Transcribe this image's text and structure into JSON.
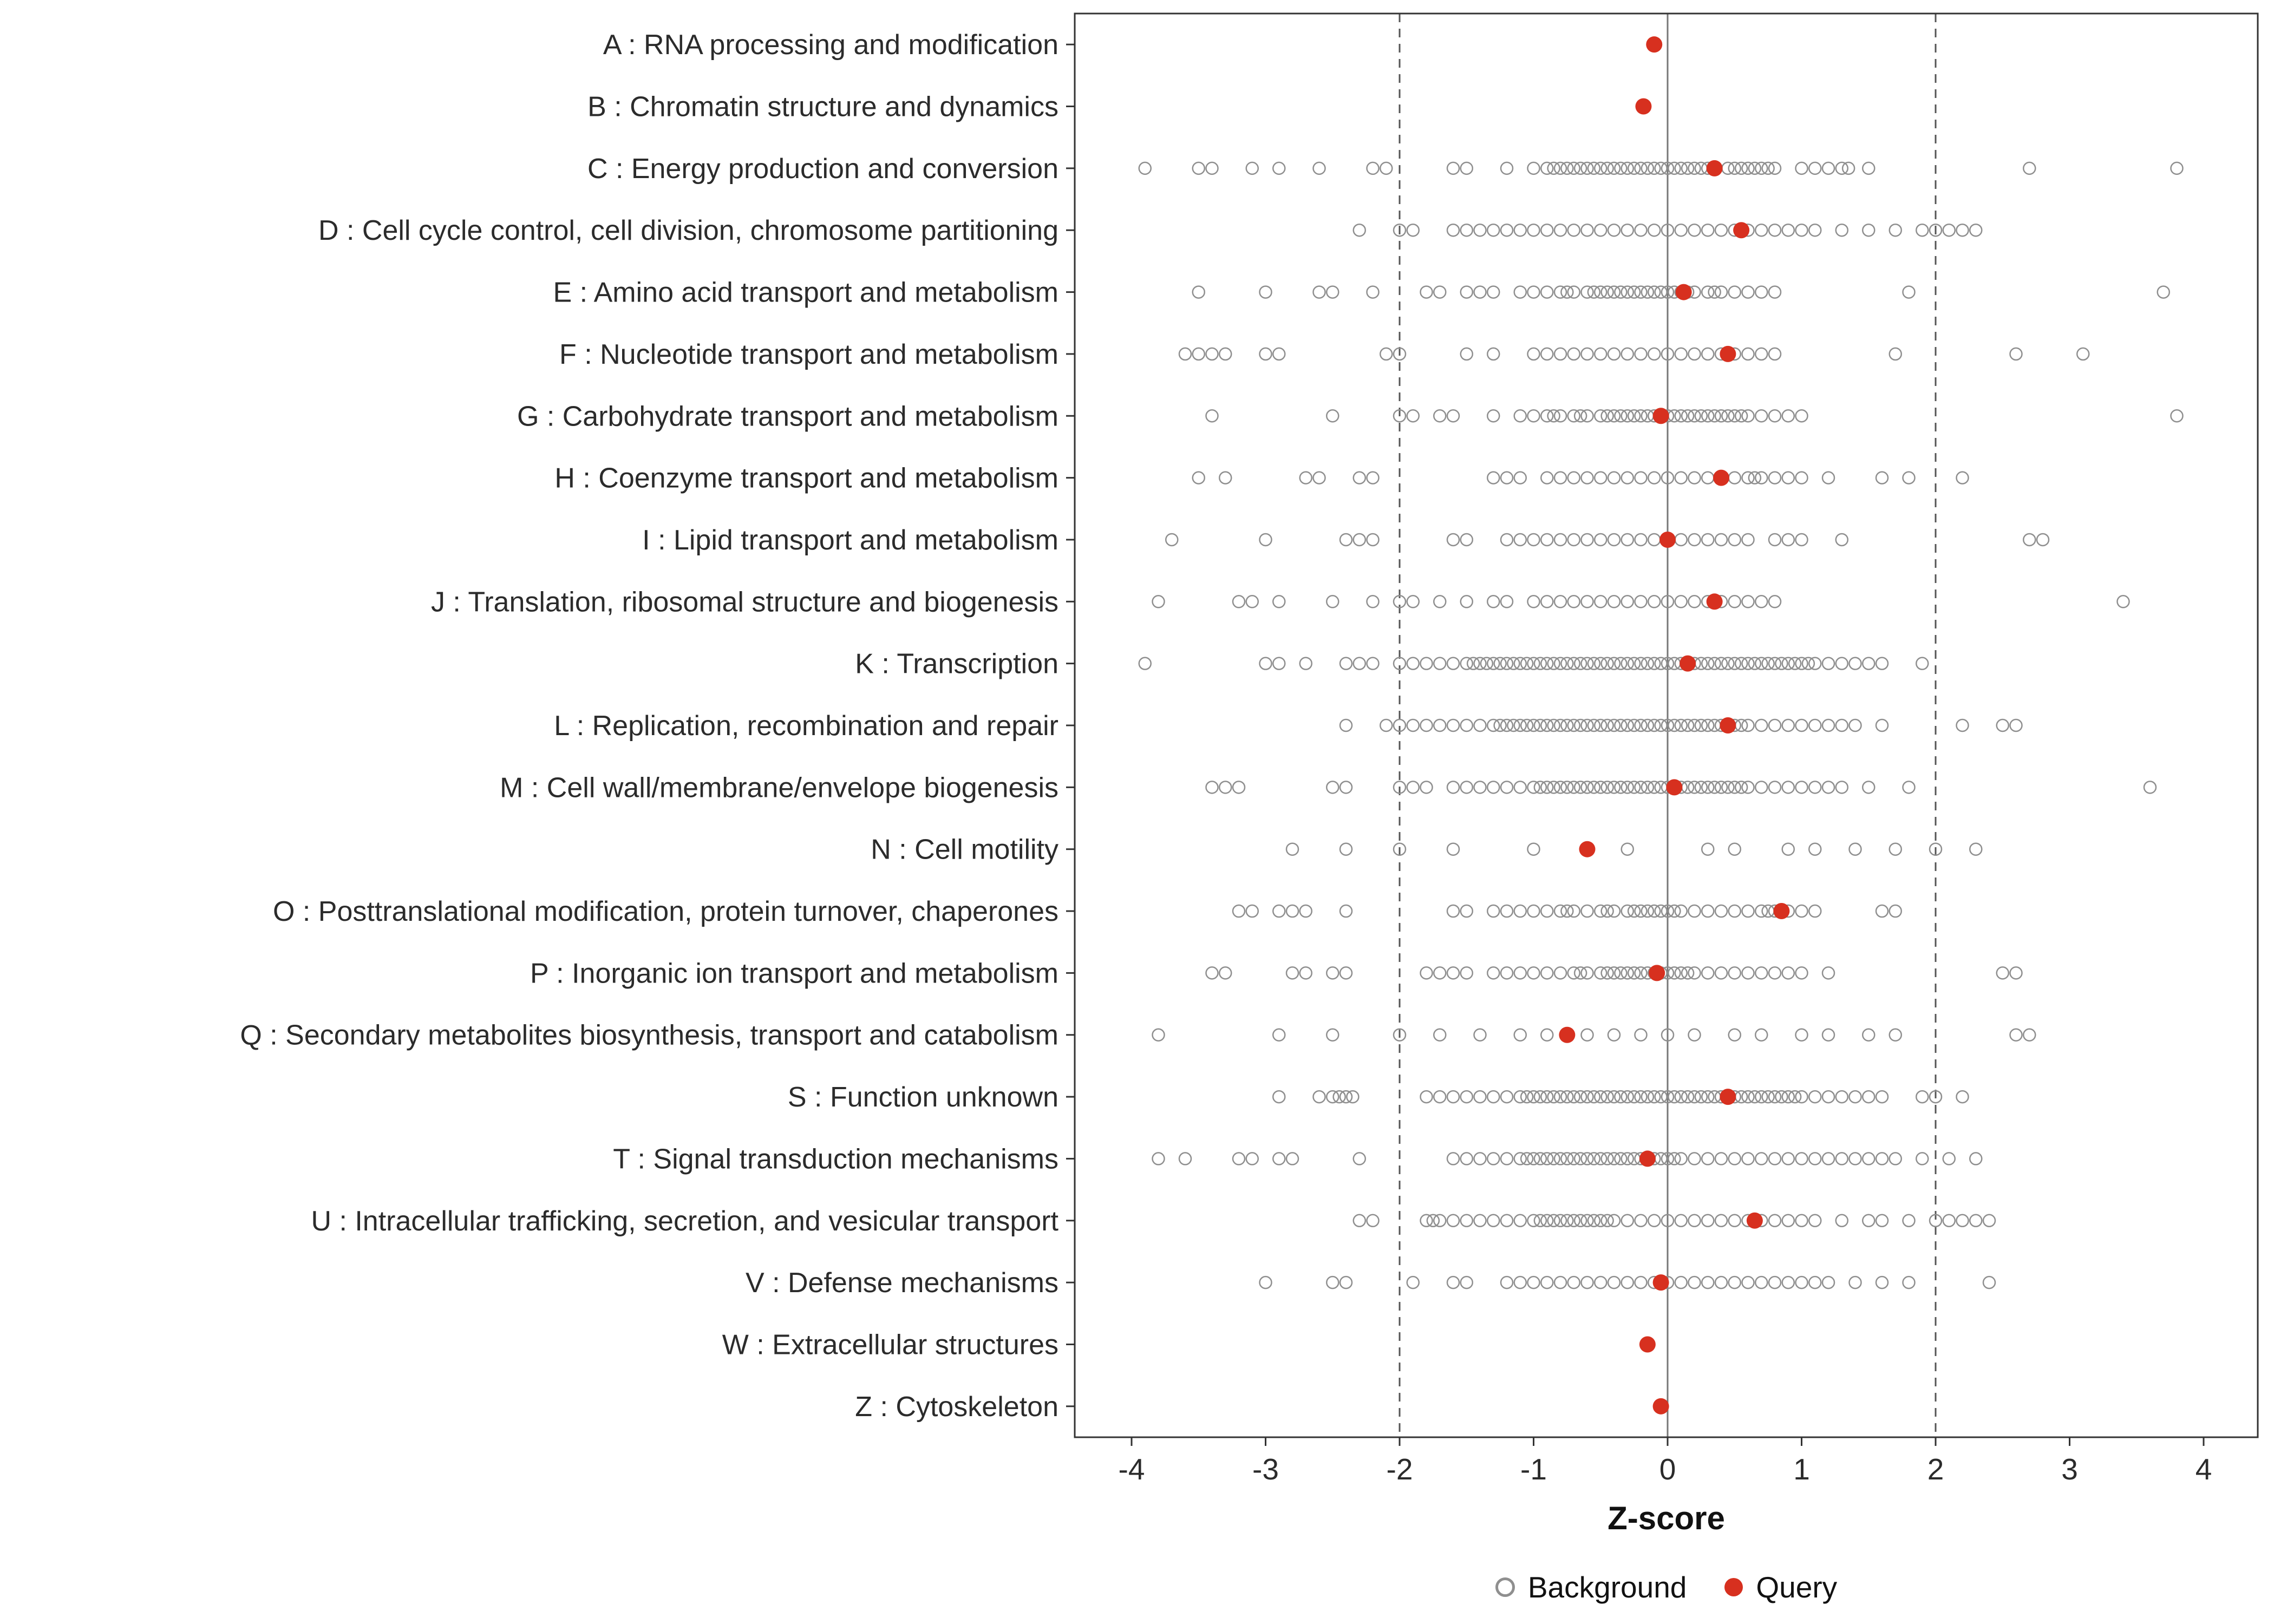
{
  "chart_data": {
    "type": "scatter",
    "title": "",
    "xlabel": "Z-score",
    "xlim": [
      -4.45,
      4.45
    ],
    "xticks": [
      -4,
      -3,
      -2,
      -1,
      0,
      1,
      2,
      3,
      4
    ],
    "reference_lines": {
      "solid": [
        0
      ],
      "dashed": [
        -2,
        2
      ]
    },
    "grid": false,
    "legend_position": "bottom",
    "legend": [
      {
        "label": "Background",
        "type": "open"
      },
      {
        "label": "Query",
        "type": "filled"
      }
    ],
    "colors": {
      "background_stroke": "#8f8f8f",
      "query_fill": "#d7301f",
      "panel_border": "#333333",
      "refline_solid": "#777777",
      "refline_dashed": "#555555",
      "text": "#2b2b2b"
    },
    "categories": [
      {
        "code": "A",
        "label": "A : RNA processing and modification",
        "query": -0.1,
        "background": []
      },
      {
        "code": "B",
        "label": "B : Chromatin structure and dynamics",
        "query": -0.18,
        "background": []
      },
      {
        "code": "C",
        "label": "C : Energy production and conversion",
        "query": 0.35,
        "background": [
          -3.9,
          -3.5,
          -3.4,
          -3.1,
          -2.9,
          -2.6,
          -2.2,
          -2.1,
          -1.6,
          -1.5,
          -1.2,
          -1.0,
          -0.9,
          -0.85,
          -0.8,
          -0.75,
          -0.7,
          -0.65,
          -0.6,
          -0.55,
          -0.5,
          -0.45,
          -0.4,
          -0.35,
          -0.3,
          -0.25,
          -0.2,
          -0.15,
          -0.1,
          -0.05,
          0.0,
          0.05,
          0.1,
          0.15,
          0.2,
          0.25,
          0.3,
          0.45,
          0.5,
          0.55,
          0.6,
          0.65,
          0.7,
          0.75,
          0.8,
          1.0,
          1.1,
          1.2,
          1.3,
          1.35,
          1.5,
          2.7,
          3.8
        ]
      },
      {
        "code": "D",
        "label": "D : Cell cycle control, cell division, chromosome partitioning",
        "query": 0.55,
        "background": [
          -2.3,
          -2.0,
          -1.9,
          -1.6,
          -1.5,
          -1.4,
          -1.3,
          -1.2,
          -1.1,
          -1.0,
          -0.9,
          -0.8,
          -0.7,
          -0.6,
          -0.5,
          -0.4,
          -0.3,
          -0.2,
          -0.1,
          0.0,
          0.1,
          0.2,
          0.3,
          0.4,
          0.5,
          0.6,
          0.7,
          0.8,
          0.9,
          1.0,
          1.1,
          1.3,
          1.5,
          1.7,
          1.9,
          2.0,
          2.1,
          2.2,
          2.3
        ]
      },
      {
        "code": "E",
        "label": "E : Amino acid transport and metabolism",
        "query": 0.12,
        "background": [
          -3.5,
          -3.0,
          -2.6,
          -2.5,
          -2.2,
          -1.8,
          -1.7,
          -1.5,
          -1.4,
          -1.3,
          -1.1,
          -1.0,
          -0.9,
          -0.8,
          -0.75,
          -0.7,
          -0.6,
          -0.55,
          -0.5,
          -0.45,
          -0.4,
          -0.35,
          -0.3,
          -0.25,
          -0.2,
          -0.15,
          -0.1,
          -0.05,
          0.0,
          0.05,
          0.1,
          0.15,
          0.2,
          0.3,
          0.35,
          0.4,
          0.5,
          0.6,
          0.7,
          0.8,
          1.8,
          3.7
        ]
      },
      {
        "code": "F",
        "label": "F : Nucleotide transport and metabolism",
        "query": 0.45,
        "background": [
          -3.6,
          -3.5,
          -3.4,
          -3.3,
          -3.0,
          -2.9,
          -2.1,
          -2.0,
          -1.5,
          -1.3,
          -1.0,
          -0.9,
          -0.8,
          -0.7,
          -0.6,
          -0.5,
          -0.4,
          -0.3,
          -0.2,
          -0.1,
          0.0,
          0.1,
          0.2,
          0.3,
          0.4,
          0.5,
          0.6,
          0.7,
          0.8,
          1.7,
          2.6,
          3.1
        ]
      },
      {
        "code": "G",
        "label": "G : Carbohydrate transport and metabolism",
        "query": -0.05,
        "background": [
          -3.4,
          -2.5,
          -2.0,
          -1.9,
          -1.7,
          -1.6,
          -1.3,
          -1.1,
          -1.0,
          -0.9,
          -0.85,
          -0.8,
          -0.7,
          -0.65,
          -0.6,
          -0.5,
          -0.45,
          -0.4,
          -0.35,
          -0.3,
          -0.25,
          -0.2,
          -0.15,
          -0.1,
          -0.05,
          0.0,
          0.05,
          0.1,
          0.15,
          0.2,
          0.25,
          0.3,
          0.35,
          0.4,
          0.45,
          0.5,
          0.55,
          0.6,
          0.7,
          0.8,
          0.9,
          1.0,
          3.8
        ]
      },
      {
        "code": "H",
        "label": "H : Coenzyme transport and metabolism",
        "query": 0.4,
        "background": [
          -3.5,
          -3.3,
          -2.7,
          -2.6,
          -2.3,
          -2.2,
          -1.3,
          -1.2,
          -1.1,
          -0.9,
          -0.8,
          -0.7,
          -0.6,
          -0.5,
          -0.4,
          -0.3,
          -0.2,
          -0.1,
          0.0,
          0.1,
          0.2,
          0.3,
          0.4,
          0.5,
          0.6,
          0.65,
          0.7,
          0.8,
          0.9,
          1.0,
          1.2,
          1.6,
          1.8,
          2.2
        ]
      },
      {
        "code": "I",
        "label": "I : Lipid transport and metabolism",
        "query": 0.0,
        "background": [
          -3.7,
          -3.0,
          -2.4,
          -2.3,
          -2.2,
          -1.6,
          -1.5,
          -1.2,
          -1.1,
          -1.0,
          -0.9,
          -0.8,
          -0.7,
          -0.6,
          -0.5,
          -0.4,
          -0.3,
          -0.2,
          -0.1,
          0.0,
          0.1,
          0.2,
          0.3,
          0.4,
          0.5,
          0.6,
          0.8,
          0.9,
          1.0,
          1.3,
          2.7,
          2.8
        ]
      },
      {
        "code": "J",
        "label": "J : Translation, ribosomal structure and biogenesis",
        "query": 0.35,
        "background": [
          -3.8,
          -3.2,
          -3.1,
          -2.9,
          -2.5,
          -2.2,
          -2.0,
          -1.9,
          -1.7,
          -1.5,
          -1.3,
          -1.2,
          -1.0,
          -0.9,
          -0.8,
          -0.7,
          -0.6,
          -0.5,
          -0.4,
          -0.3,
          -0.2,
          -0.1,
          0.0,
          0.1,
          0.2,
          0.3,
          0.4,
          0.5,
          0.6,
          0.7,
          0.8,
          3.4
        ]
      },
      {
        "code": "K",
        "label": "K : Transcription",
        "query": 0.15,
        "background": [
          -3.9,
          -3.0,
          -2.9,
          -2.7,
          -2.4,
          -2.3,
          -2.2,
          -2.0,
          -1.9,
          -1.8,
          -1.7,
          -1.6,
          -1.5,
          -1.45,
          -1.4,
          -1.35,
          -1.3,
          -1.25,
          -1.2,
          -1.15,
          -1.1,
          -1.05,
          -1.0,
          -0.95,
          -0.9,
          -0.85,
          -0.8,
          -0.75,
          -0.7,
          -0.65,
          -0.6,
          -0.55,
          -0.5,
          -0.45,
          -0.4,
          -0.35,
          -0.3,
          -0.25,
          -0.2,
          -0.15,
          -0.1,
          -0.05,
          0.0,
          0.05,
          0.1,
          0.15,
          0.2,
          0.25,
          0.3,
          0.35,
          0.4,
          0.45,
          0.5,
          0.55,
          0.6,
          0.65,
          0.7,
          0.75,
          0.8,
          0.85,
          0.9,
          0.95,
          1.0,
          1.05,
          1.1,
          1.2,
          1.3,
          1.4,
          1.5,
          1.6,
          1.9
        ]
      },
      {
        "code": "L",
        "label": "L : Replication, recombination and repair",
        "query": 0.45,
        "background": [
          -2.4,
          -2.1,
          -2.0,
          -1.9,
          -1.8,
          -1.7,
          -1.6,
          -1.5,
          -1.4,
          -1.3,
          -1.25,
          -1.2,
          -1.15,
          -1.1,
          -1.05,
          -1.0,
          -0.95,
          -0.9,
          -0.85,
          -0.8,
          -0.75,
          -0.7,
          -0.65,
          -0.6,
          -0.55,
          -0.5,
          -0.45,
          -0.4,
          -0.35,
          -0.3,
          -0.25,
          -0.2,
          -0.15,
          -0.1,
          -0.05,
          0.0,
          0.05,
          0.1,
          0.15,
          0.2,
          0.25,
          0.3,
          0.35,
          0.4,
          0.5,
          0.55,
          0.6,
          0.7,
          0.8,
          0.9,
          1.0,
          1.1,
          1.2,
          1.3,
          1.4,
          1.6,
          2.2,
          2.5,
          2.6
        ]
      },
      {
        "code": "M",
        "label": "M : Cell wall/membrane/envelope biogenesis",
        "query": 0.05,
        "background": [
          -3.4,
          -3.3,
          -3.2,
          -2.5,
          -2.4,
          -2.0,
          -1.9,
          -1.8,
          -1.6,
          -1.5,
          -1.4,
          -1.3,
          -1.2,
          -1.1,
          -1.0,
          -0.95,
          -0.9,
          -0.85,
          -0.8,
          -0.75,
          -0.7,
          -0.65,
          -0.6,
          -0.55,
          -0.5,
          -0.45,
          -0.4,
          -0.35,
          -0.3,
          -0.25,
          -0.2,
          -0.15,
          -0.1,
          -0.05,
          0.0,
          0.05,
          0.1,
          0.15,
          0.2,
          0.25,
          0.3,
          0.35,
          0.4,
          0.45,
          0.5,
          0.55,
          0.6,
          0.7,
          0.8,
          0.9,
          1.0,
          1.1,
          1.2,
          1.3,
          1.5,
          1.8,
          3.6
        ]
      },
      {
        "code": "N",
        "label": "N : Cell motility",
        "query": -0.6,
        "background": [
          -2.8,
          -2.4,
          -2.0,
          -1.6,
          -1.0,
          -0.3,
          0.3,
          0.5,
          0.9,
          1.1,
          1.4,
          1.7,
          2.0,
          2.3
        ]
      },
      {
        "code": "O",
        "label": "O : Posttranslational modification, protein turnover, chaperones",
        "query": 0.85,
        "background": [
          -3.2,
          -3.1,
          -2.9,
          -2.8,
          -2.7,
          -2.4,
          -1.6,
          -1.5,
          -1.3,
          -1.2,
          -1.1,
          -1.0,
          -0.9,
          -0.8,
          -0.75,
          -0.7,
          -0.6,
          -0.5,
          -0.45,
          -0.4,
          -0.3,
          -0.25,
          -0.2,
          -0.15,
          -0.1,
          -0.05,
          0.0,
          0.05,
          0.1,
          0.2,
          0.3,
          0.4,
          0.5,
          0.6,
          0.7,
          0.75,
          0.8,
          0.9,
          1.0,
          1.1,
          1.6,
          1.7
        ]
      },
      {
        "code": "P",
        "label": "P : Inorganic ion transport and metabolism",
        "query": -0.08,
        "background": [
          -3.4,
          -3.3,
          -2.8,
          -2.7,
          -2.5,
          -2.4,
          -1.8,
          -1.7,
          -1.6,
          -1.5,
          -1.3,
          -1.2,
          -1.1,
          -1.0,
          -0.9,
          -0.8,
          -0.7,
          -0.65,
          -0.6,
          -0.5,
          -0.45,
          -0.4,
          -0.35,
          -0.3,
          -0.25,
          -0.2,
          -0.15,
          -0.1,
          -0.05,
          0.0,
          0.05,
          0.1,
          0.15,
          0.2,
          0.3,
          0.4,
          0.5,
          0.6,
          0.7,
          0.8,
          0.9,
          1.0,
          1.2,
          2.5,
          2.6
        ]
      },
      {
        "code": "Q",
        "label": "Q : Secondary metabolites biosynthesis, transport and catabolism",
        "query": -0.75,
        "background": [
          -3.8,
          -2.9,
          -2.5,
          -2.0,
          -1.7,
          -1.4,
          -1.1,
          -0.9,
          -0.6,
          -0.4,
          -0.2,
          0.0,
          0.2,
          0.5,
          0.7,
          1.0,
          1.2,
          1.5,
          1.7,
          2.6,
          2.7
        ]
      },
      {
        "code": "S",
        "label": "S : Function unknown",
        "query": 0.45,
        "background": [
          -2.9,
          -2.6,
          -2.5,
          -2.45,
          -2.4,
          -2.35,
          -1.8,
          -1.7,
          -1.6,
          -1.5,
          -1.4,
          -1.3,
          -1.2,
          -1.1,
          -1.05,
          -1.0,
          -0.95,
          -0.9,
          -0.85,
          -0.8,
          -0.75,
          -0.7,
          -0.65,
          -0.6,
          -0.55,
          -0.5,
          -0.45,
          -0.4,
          -0.35,
          -0.3,
          -0.25,
          -0.2,
          -0.15,
          -0.1,
          -0.05,
          0.0,
          0.05,
          0.1,
          0.15,
          0.2,
          0.25,
          0.3,
          0.35,
          0.4,
          0.45,
          0.5,
          0.55,
          0.6,
          0.65,
          0.7,
          0.75,
          0.8,
          0.85,
          0.9,
          0.95,
          1.0,
          1.1,
          1.2,
          1.3,
          1.4,
          1.5,
          1.6,
          1.9,
          2.0,
          2.2
        ]
      },
      {
        "code": "T",
        "label": "T : Signal transduction mechanisms",
        "query": -0.15,
        "background": [
          -3.8,
          -3.6,
          -3.2,
          -3.1,
          -2.9,
          -2.8,
          -2.3,
          -1.6,
          -1.5,
          -1.4,
          -1.3,
          -1.2,
          -1.1,
          -1.05,
          -1.0,
          -0.95,
          -0.9,
          -0.85,
          -0.8,
          -0.75,
          -0.7,
          -0.65,
          -0.6,
          -0.55,
          -0.5,
          -0.45,
          -0.4,
          -0.35,
          -0.3,
          -0.25,
          -0.2,
          -0.15,
          -0.1,
          -0.05,
          0.0,
          0.05,
          0.1,
          0.2,
          0.3,
          0.4,
          0.5,
          0.6,
          0.7,
          0.8,
          0.9,
          1.0,
          1.1,
          1.2,
          1.3,
          1.4,
          1.5,
          1.6,
          1.7,
          1.9,
          2.1,
          2.3
        ]
      },
      {
        "code": "U",
        "label": "U : Intracellular trafficking, secretion, and vesicular transport",
        "query": 0.65,
        "background": [
          -2.3,
          -2.2,
          -1.8,
          -1.75,
          -1.7,
          -1.6,
          -1.5,
          -1.4,
          -1.3,
          -1.2,
          -1.1,
          -1.0,
          -0.95,
          -0.9,
          -0.85,
          -0.8,
          -0.75,
          -0.7,
          -0.65,
          -0.6,
          -0.55,
          -0.5,
          -0.45,
          -0.4,
          -0.3,
          -0.2,
          -0.1,
          0.0,
          0.1,
          0.2,
          0.3,
          0.4,
          0.5,
          0.6,
          0.7,
          0.8,
          0.9,
          1.0,
          1.1,
          1.3,
          1.5,
          1.6,
          1.8,
          2.0,
          2.1,
          2.2,
          2.3,
          2.4
        ]
      },
      {
        "code": "V",
        "label": "V : Defense mechanisms",
        "query": -0.05,
        "background": [
          -3.0,
          -2.5,
          -2.4,
          -1.9,
          -1.6,
          -1.5,
          -1.2,
          -1.1,
          -1.0,
          -0.9,
          -0.8,
          -0.7,
          -0.6,
          -0.5,
          -0.4,
          -0.3,
          -0.2,
          -0.1,
          0.0,
          0.1,
          0.2,
          0.3,
          0.4,
          0.5,
          0.6,
          0.7,
          0.8,
          0.9,
          1.0,
          1.1,
          1.2,
          1.4,
          1.6,
          1.8,
          2.4
        ]
      },
      {
        "code": "W",
        "label": "W : Extracellular structures",
        "query": -0.15,
        "background": []
      },
      {
        "code": "Z",
        "label": "Z : Cytoskeleton",
        "query": -0.05,
        "background": []
      }
    ]
  }
}
